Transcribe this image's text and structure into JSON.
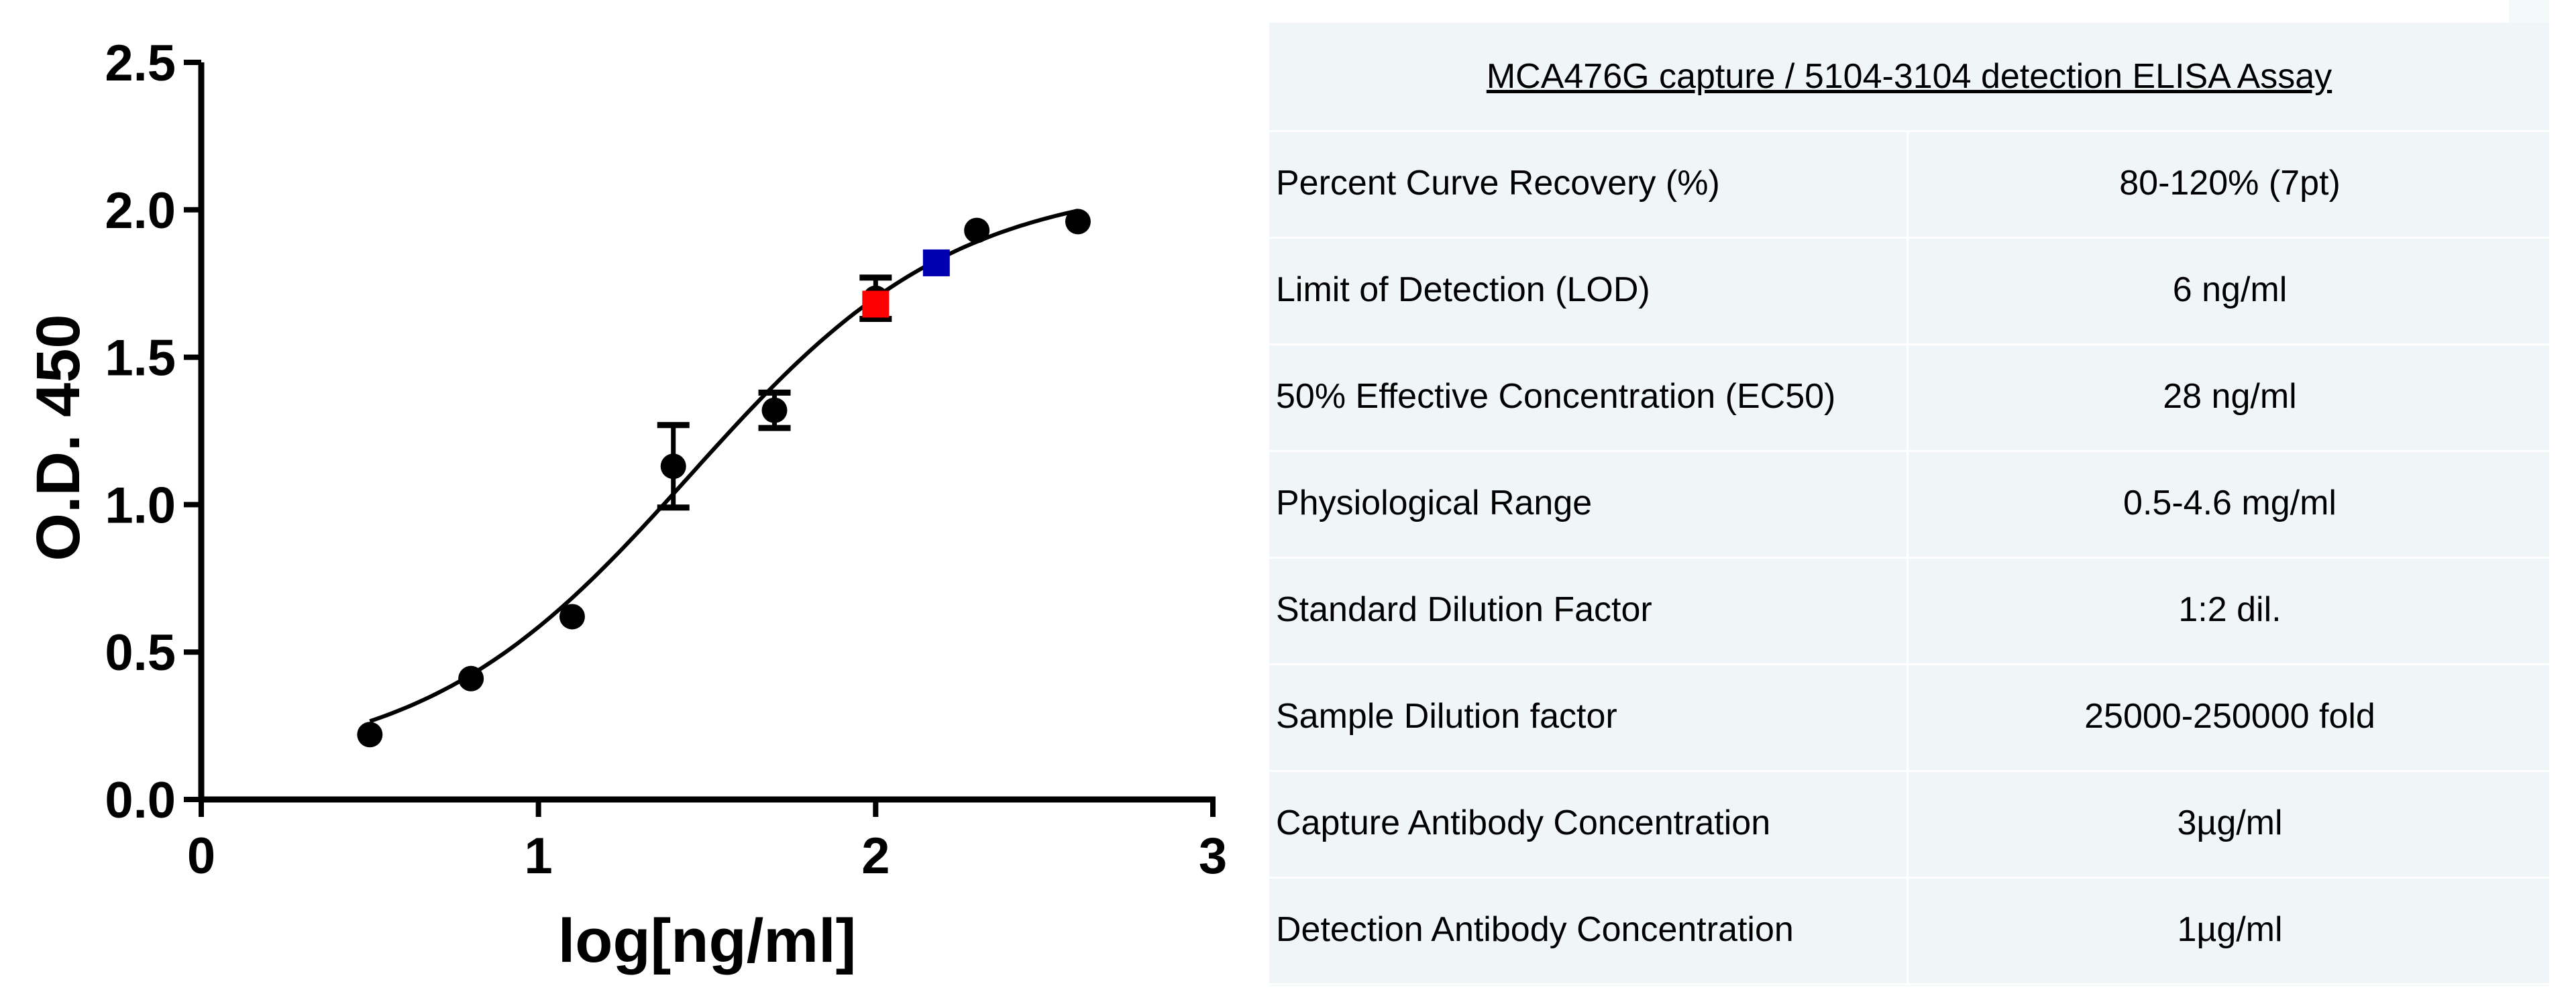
{
  "chart_data": {
    "type": "scatter",
    "title": "",
    "xlabel": "log[ng/ml]",
    "ylabel": "O.D. 450",
    "xlim": [
      0,
      3
    ],
    "ylim": [
      0,
      2.5
    ],
    "x_ticks": [
      "0",
      "1",
      "2",
      "3"
    ],
    "y_ticks": [
      "0.0",
      "0.5",
      "1.0",
      "1.5",
      "2.0",
      "2.5"
    ],
    "grid": false,
    "legend": "none",
    "standards": {
      "x": [
        0.5,
        0.8,
        1.1,
        1.4,
        1.7,
        2.0,
        2.3,
        2.6
      ],
      "y": [
        0.22,
        0.41,
        0.62,
        1.13,
        1.32,
        1.7,
        1.93,
        1.96
      ],
      "error": [
        0.0,
        0.0,
        0.0,
        0.14,
        0.06,
        0.07,
        0.0,
        0.0
      ],
      "color": "#000000"
    },
    "fit_curve": {
      "model": "four-parameter logistic",
      "bottom": 0.1,
      "top": 2.1,
      "log_ec50": 1.45,
      "hill_slope": 1.1,
      "x_range": [
        0.5,
        2.6
      ],
      "color": "#000000"
    },
    "markers": [
      {
        "x": 2.0,
        "y": 1.68,
        "color": "#ff0000"
      },
      {
        "x": 2.18,
        "y": 1.82,
        "color": "#0000b0"
      }
    ]
  },
  "panel": {
    "title": "MCA476G capture / 5104-3104 detection ELISA Assay",
    "rows": [
      {
        "label": "Percent Curve Recovery (%)",
        "value": "80-120% (7pt)"
      },
      {
        "label": "Limit of Detection (LOD)",
        "value": "6 ng/ml"
      },
      {
        "label": "50% Effective Concentration (EC50)",
        "value": "28 ng/ml"
      },
      {
        "label": "Physiological Range",
        "value": "0.5-4.6 mg/ml"
      },
      {
        "label": "Standard Dilution Factor",
        "value": "1:2 dil."
      },
      {
        "label": "Sample Dilution factor",
        "value": "25000-250000 fold"
      },
      {
        "label": "Capture Antibody Concentration",
        "value": "3µg/ml"
      },
      {
        "label": "Detection Antibody Concentration",
        "value": "1µg/ml"
      }
    ]
  }
}
